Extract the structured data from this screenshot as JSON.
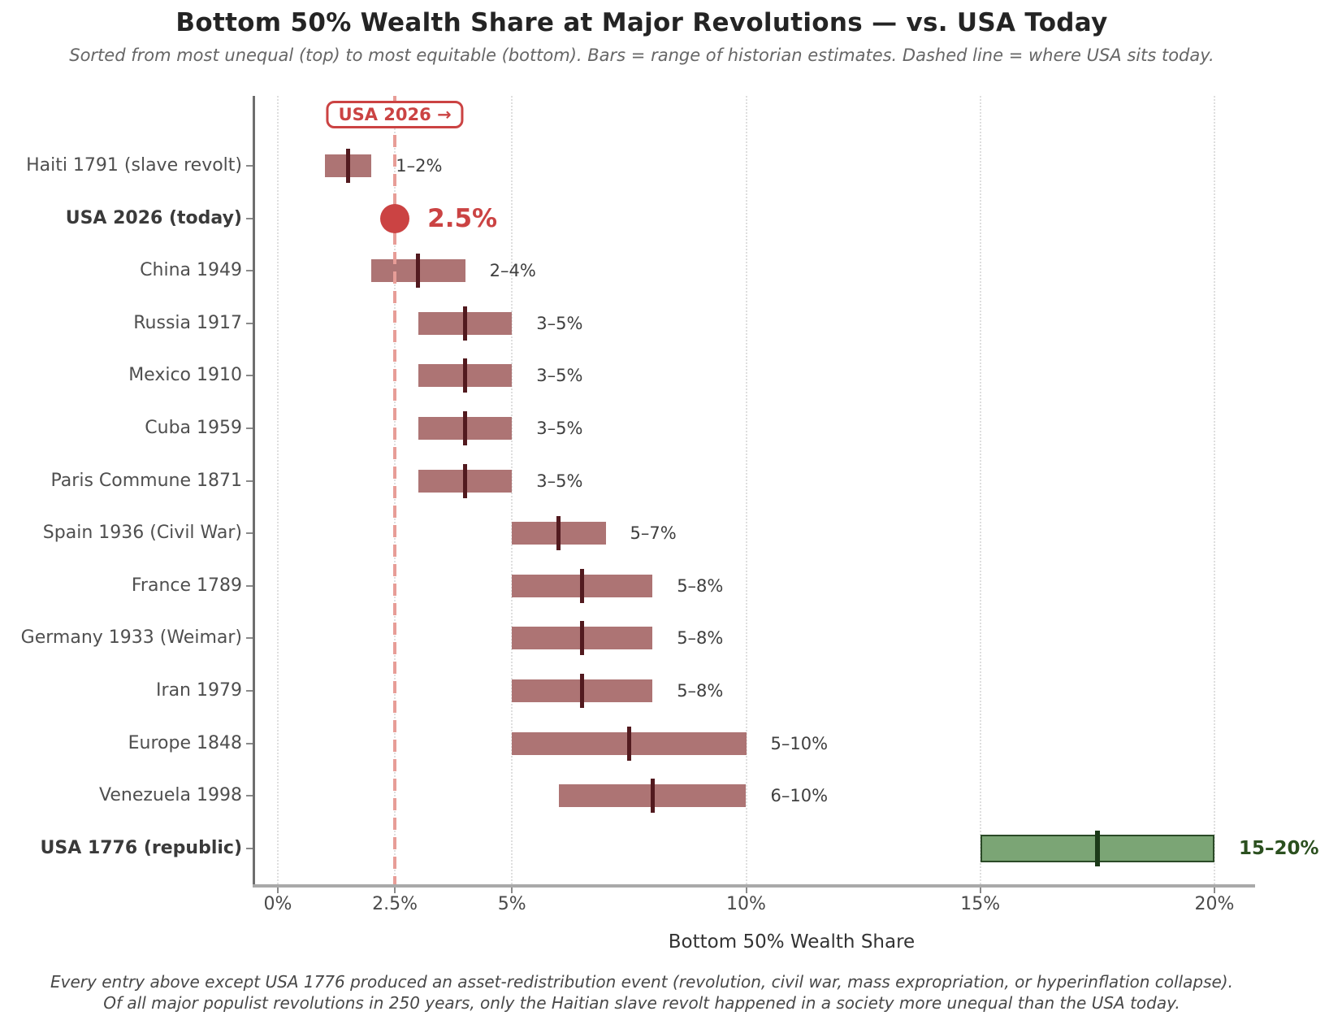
{
  "chart_data": {
    "type": "bar",
    "variant": "horizontal-range-bars",
    "title": "Bottom 50% Wealth Share at Major Revolutions — vs. USA Today",
    "subtitle": "Sorted from most unequal (top) to most equitable (bottom). Bars = range of historian estimates. Dashed line = where USA sits today.",
    "xlabel": "Bottom 50% Wealth Share",
    "xlim": [
      -0.5,
      20.9
    ],
    "grid": "vertical dotted gridlines at each x tick",
    "legend": "none",
    "x_ticks": [
      {
        "value": 0,
        "label": "0%"
      },
      {
        "value": 2.5,
        "label": "2.5%"
      },
      {
        "value": 5,
        "label": "5%"
      },
      {
        "value": 10,
        "label": "10%"
      },
      {
        "value": 15,
        "label": "15%"
      },
      {
        "value": 20,
        "label": "20%"
      }
    ],
    "reference_line": {
      "value": 2.5,
      "style": "dashed",
      "badge_label": "USA 2026 →"
    },
    "entries": [
      {
        "category": "Haiti 1791 (slave revolt)",
        "type": "range",
        "low": 1,
        "high": 2,
        "median": 1.5,
        "label": "1–2%",
        "bold": false,
        "scheme": "red"
      },
      {
        "category": "USA 2026 (today)",
        "type": "point",
        "value": 2.5,
        "label": "2.5%",
        "bold": true,
        "scheme": "red"
      },
      {
        "category": "China 1949",
        "type": "range",
        "low": 2,
        "high": 4,
        "median": 3,
        "label": "2–4%",
        "bold": false,
        "scheme": "red"
      },
      {
        "category": "Russia 1917",
        "type": "range",
        "low": 3,
        "high": 5,
        "median": 4,
        "label": "3–5%",
        "bold": false,
        "scheme": "red"
      },
      {
        "category": "Mexico 1910",
        "type": "range",
        "low": 3,
        "high": 5,
        "median": 4,
        "label": "3–5%",
        "bold": false,
        "scheme": "red"
      },
      {
        "category": "Cuba 1959",
        "type": "range",
        "low": 3,
        "high": 5,
        "median": 4,
        "label": "3–5%",
        "bold": false,
        "scheme": "red"
      },
      {
        "category": "Paris Commune 1871",
        "type": "range",
        "low": 3,
        "high": 5,
        "median": 4,
        "label": "3–5%",
        "bold": false,
        "scheme": "red"
      },
      {
        "category": "Spain 1936 (Civil War)",
        "type": "range",
        "low": 5,
        "high": 7,
        "median": 6,
        "label": "5–7%",
        "bold": false,
        "scheme": "red"
      },
      {
        "category": "France 1789",
        "type": "range",
        "low": 5,
        "high": 8,
        "median": 6.5,
        "label": "5–8%",
        "bold": false,
        "scheme": "red"
      },
      {
        "category": "Germany 1933 (Weimar)",
        "type": "range",
        "low": 5,
        "high": 8,
        "median": 6.5,
        "label": "5–8%",
        "bold": false,
        "scheme": "red"
      },
      {
        "category": "Iran 1979",
        "type": "range",
        "low": 5,
        "high": 8,
        "median": 6.5,
        "label": "5–8%",
        "bold": false,
        "scheme": "red"
      },
      {
        "category": "Europe 1848",
        "type": "range",
        "low": 5,
        "high": 10,
        "median": 7.5,
        "label": "5–10%",
        "bold": false,
        "scheme": "red"
      },
      {
        "category": "Venezuela 1998",
        "type": "range",
        "low": 6,
        "high": 10,
        "median": 8,
        "label": "6–10%",
        "bold": false,
        "scheme": "red"
      },
      {
        "category": "USA 1776 (republic)",
        "type": "range",
        "low": 15,
        "high": 20,
        "median": 17.5,
        "label": "15–20%",
        "bold": true,
        "scheme": "green"
      }
    ],
    "footnote_line1": "Every entry above except USA 1776 produced an asset-redistribution event (revolution, civil war, mass expropriation, or hyperinflation collapse).",
    "footnote_line2": "Of all major populist revolutions in 250 years, only the Haitian slave revolt happened in a society more unequal than the USA today.",
    "colors": {
      "red_bar_fill": "#ad7474",
      "red_bar_median": "#521a1f",
      "accent_red": "#cb4343",
      "dashed_line": "#e79d97",
      "green_bar_fill": "#7ba575",
      "green_bar_edge": "#2b4a27",
      "green_bar_median": "#1c3a19",
      "green_label": "#2b501f",
      "value_label": "#3f3f3f",
      "category_label": "#4f4f4f",
      "category_label_bold": "#3a3a3a",
      "title": "#242424",
      "subtitle": "#666666",
      "footnote": "#484848",
      "axis_line": "#a9a9a9",
      "spine": "#6e6e6e",
      "tick_mark": "#8a8a8a",
      "tick_label": "#4a4a4a",
      "gridline": "#dedede"
    }
  }
}
